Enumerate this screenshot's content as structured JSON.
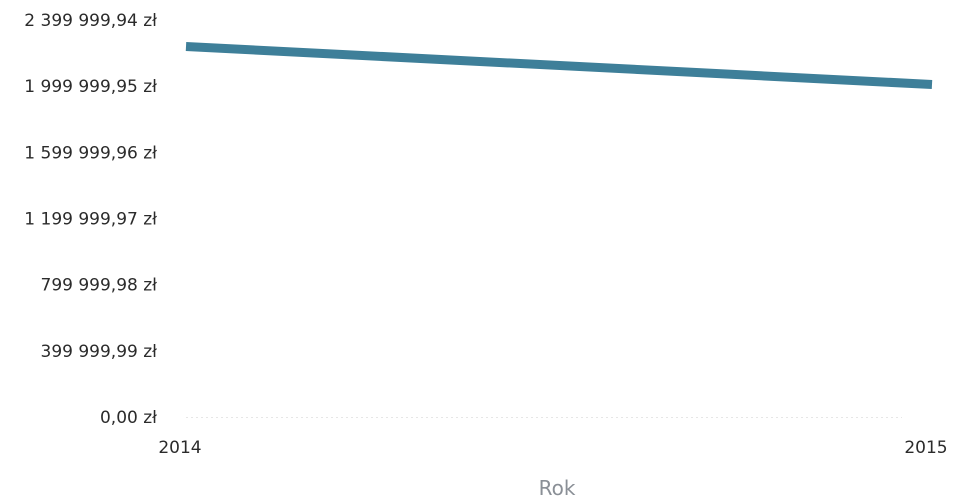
{
  "chart_data": {
    "type": "line",
    "title": "",
    "xlabel": "Rok",
    "ylabel": "",
    "x": [
      "2014",
      "2015"
    ],
    "series": [
      {
        "values": [
          2240000,
          2010000
        ],
        "color": "#3e7f99"
      }
    ],
    "xlim": [
      "2014",
      "2015"
    ],
    "ylim": [
      0,
      2399999.94
    ],
    "yticks": [
      0,
      399999.99,
      799999.98,
      1199999.97,
      1599999.96,
      1999999.95,
      2399999.94
    ],
    "ytick_labels": [
      "0,00 zł",
      "399 999,99 zł",
      "799 999,98 zł",
      "1 199 999,97 zł",
      "1 599 999,96 zł",
      "1 999 999,95 zł",
      "2 399 999,94 zł"
    ],
    "xtick_labels": [
      "2014",
      "2015"
    ],
    "grid": false,
    "legend": "none"
  }
}
